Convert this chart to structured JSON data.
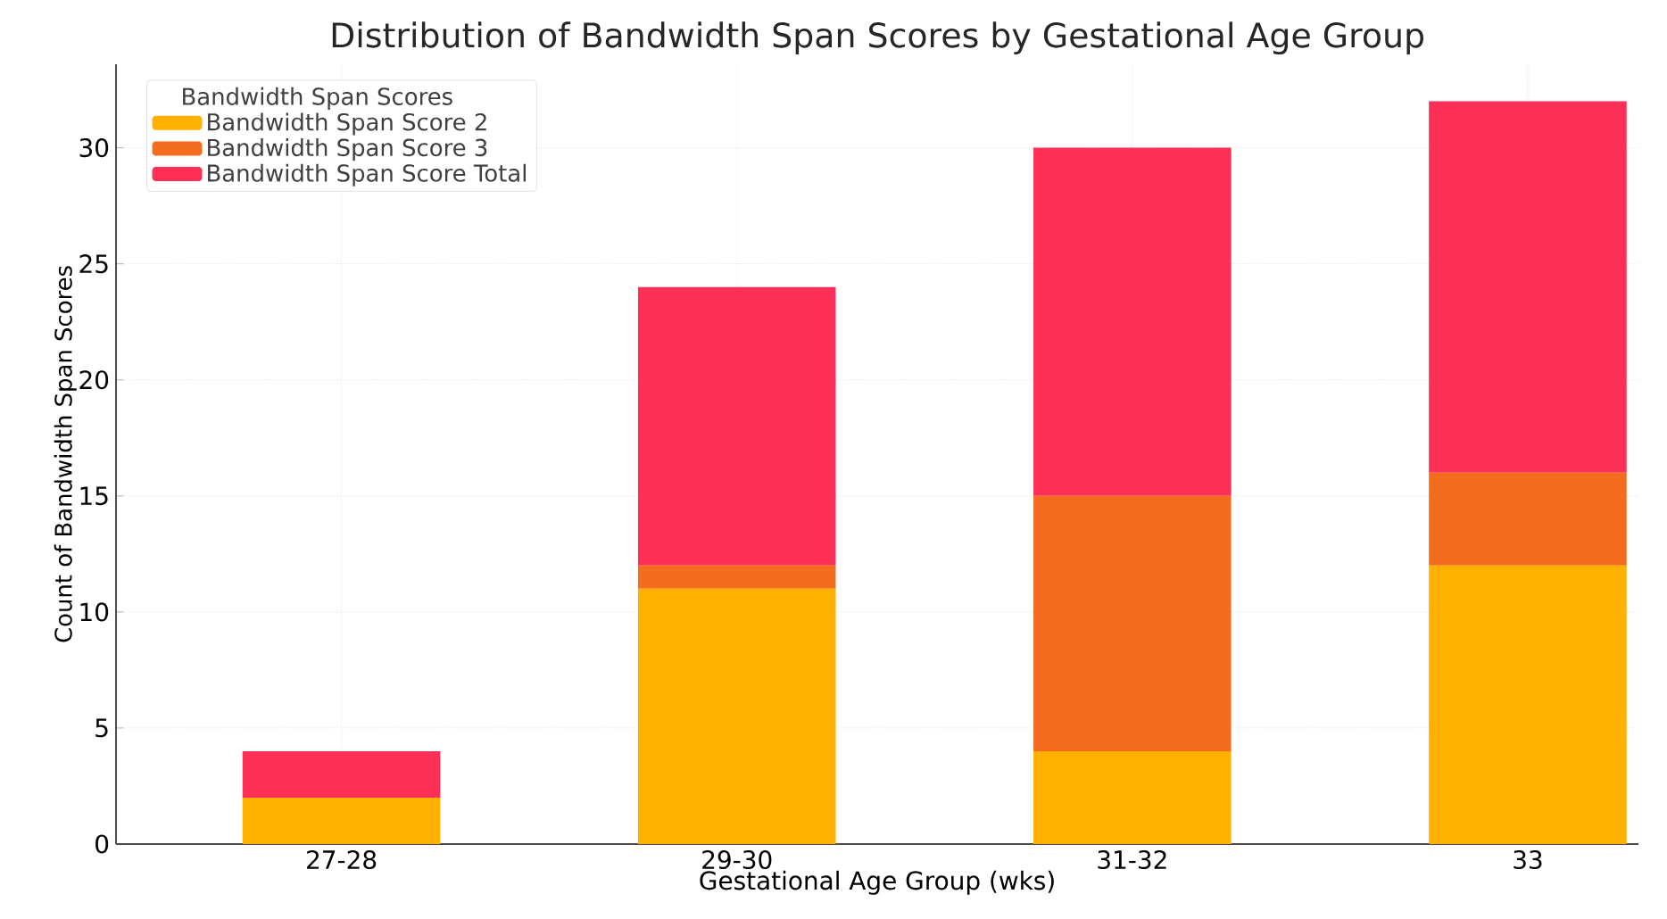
{
  "chart_data": {
    "type": "bar",
    "stacked": true,
    "title": "Distribution of Bandwidth Span Scores by Gestational Age Group",
    "xlabel": "Gestational Age Group (wks)",
    "ylabel": "Count of Bandwidth Span Scores",
    "legend_title": "Bandwidth Span Scores",
    "categories": [
      "27-28",
      "29-30",
      "31-32",
      "33"
    ],
    "series": [
      {
        "name": "Bandwidth Span Score 2",
        "color": "#ffb000",
        "values": [
          2,
          11,
          4,
          12
        ]
      },
      {
        "name": "Bandwidth Span Score 3",
        "color": "#f46d1e",
        "values": [
          0,
          1,
          11,
          4
        ]
      },
      {
        "name": "Bandwidth Span Score Total",
        "color": "#fc2f56",
        "values": [
          2,
          12,
          15,
          16
        ]
      }
    ],
    "ylim": [
      0,
      33.6
    ],
    "yticks": [
      0,
      5,
      10,
      15,
      20,
      25,
      30
    ],
    "grid": true,
    "legend": "top left"
  }
}
